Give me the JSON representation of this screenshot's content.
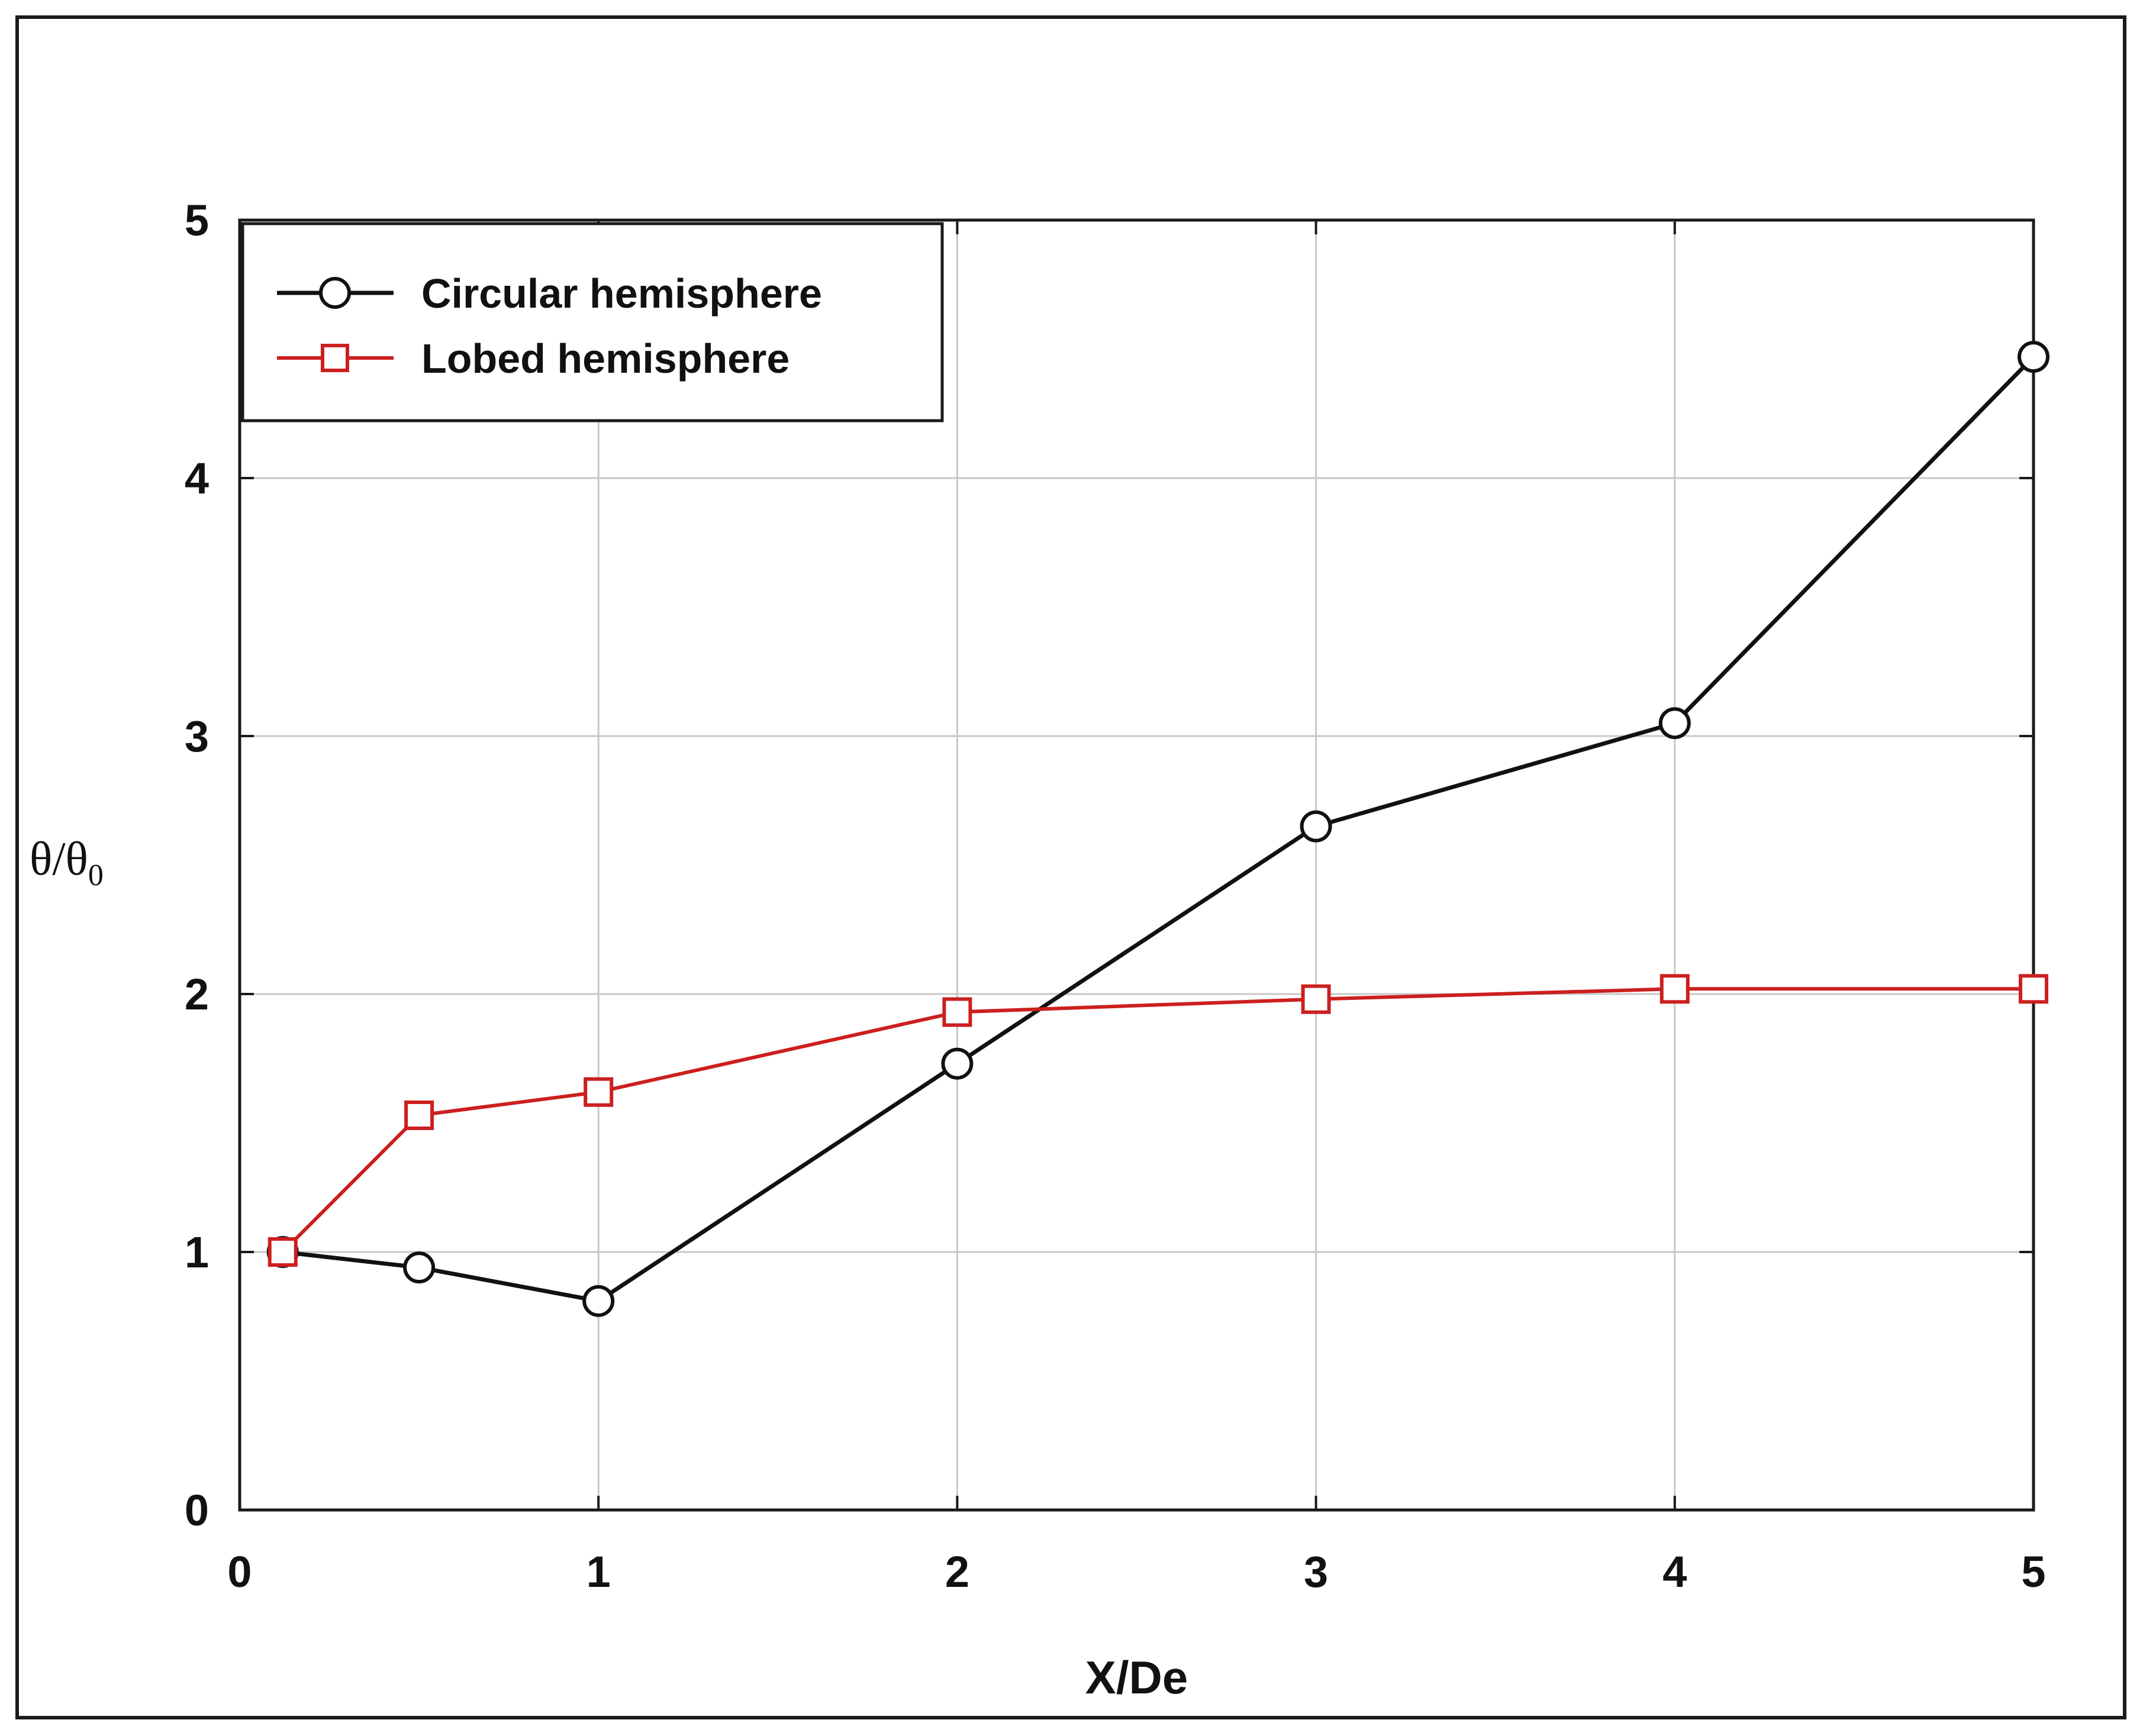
{
  "chart_data": {
    "type": "line",
    "xlabel": "X/De",
    "ylabel": {
      "main": "θ/θ",
      "subscript": "0"
    },
    "xlim": [
      0,
      5
    ],
    "ylim": [
      0,
      5
    ],
    "xticks": [
      "0",
      "1",
      "2",
      "3",
      "4",
      "5"
    ],
    "yticks": [
      "0",
      "1",
      "2",
      "3",
      "4",
      "5"
    ],
    "grid": true,
    "legend_position": "top-left",
    "series": [
      {
        "name": "Circular hemisphere",
        "color": "#111111",
        "marker": "circle",
        "x": [
          0.12,
          0.5,
          1.0,
          2.0,
          3.0,
          4.0,
          5.0
        ],
        "y": [
          1.0,
          0.94,
          0.81,
          1.73,
          2.65,
          3.05,
          4.47
        ]
      },
      {
        "name": "Lobed hemisphere",
        "color": "#cc1f1f",
        "marker": "square",
        "x": [
          0.12,
          0.5,
          1.0,
          2.0,
          3.0,
          4.0,
          5.0
        ],
        "y": [
          1.0,
          1.53,
          1.62,
          1.93,
          1.98,
          2.02,
          2.02
        ]
      }
    ]
  }
}
